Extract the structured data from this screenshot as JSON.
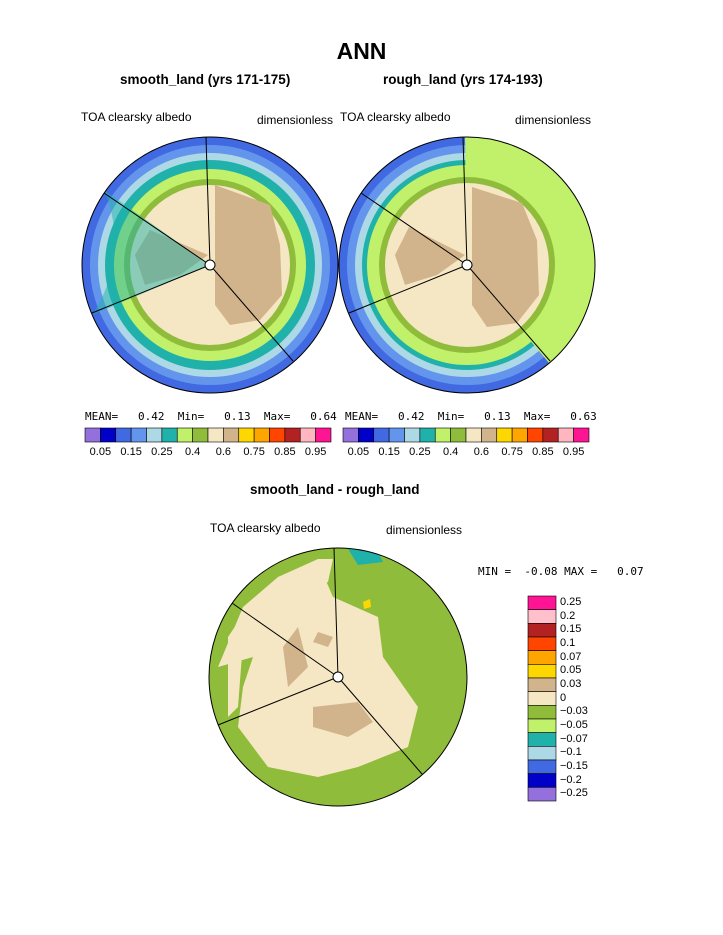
{
  "title": "ANN",
  "panels": [
    {
      "title": "smooth_land (yrs 171-175)",
      "variable": "TOA clearsky albedo",
      "units": "dimensionless",
      "stats": {
        "mean_label": "MEAN=",
        "mean": "0.42",
        "min_label": "Min=",
        "min": "0.13",
        "max_label": "Max=",
        "max": "0.64"
      }
    },
    {
      "title": "rough_land (yrs 174-193)",
      "variable": "TOA clearsky albedo",
      "units": "dimensionless",
      "stats": {
        "mean_label": "MEAN=",
        "mean": "0.42",
        "min_label": "Min=",
        "min": "0.13",
        "max_label": "Max=",
        "max": "0.63"
      }
    },
    {
      "title": "smooth_land - rough_land",
      "variable": "TOA clearsky albedo",
      "units": "dimensionless",
      "stats": {
        "min_label": "MIN =",
        "min": "-0.08",
        "max_label": "MAX =",
        "max": "0.07"
      }
    }
  ],
  "colorbar_top": {
    "colors": [
      "#9370db",
      "#0000c8",
      "#4169e1",
      "#6495ed",
      "#add8e6",
      "#20b2aa",
      "#c1f06a",
      "#8fbc3a",
      "#f5e6c4",
      "#d2b48c",
      "#ffd700",
      "#ffa500",
      "#ff4500",
      "#b22222",
      "#ffb6c1",
      "#ff1493"
    ],
    "tick_labels": [
      "0.05",
      "0.15",
      "0.25",
      "0.4",
      "0.6",
      "0.75",
      "0.85",
      "0.95"
    ]
  },
  "colorbar_diff": {
    "colors": [
      "#ff1493",
      "#ffc0cb",
      "#b22222",
      "#ff4500",
      "#ffa500",
      "#ffd700",
      "#d2b48c",
      "#f5e6c4",
      "#8fbc3a",
      "#c1f06a",
      "#20b2aa",
      "#add8e6",
      "#4169e1",
      "#0000c8",
      "#9370db"
    ],
    "tick_labels": [
      "0.25",
      "0.2",
      "0.15",
      "0.1",
      "0.07",
      "0.05",
      "0.03",
      "0",
      "−0.03",
      "−0.05",
      "−0.07",
      "−0.1",
      "−0.15",
      "−0.2",
      "−0.25"
    ]
  }
}
